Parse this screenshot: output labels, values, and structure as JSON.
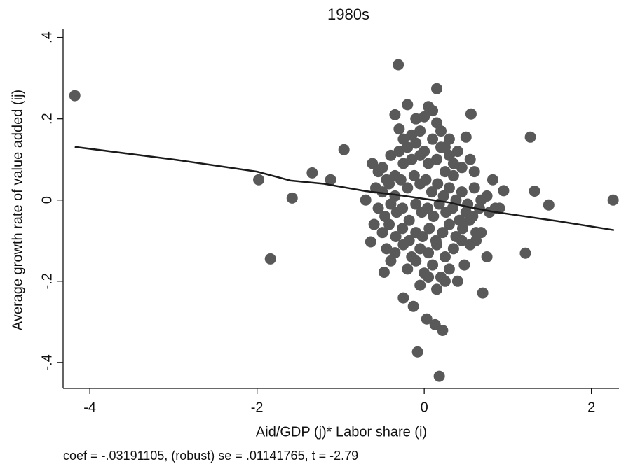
{
  "chart_data": {
    "type": "scatter",
    "title": "1980s",
    "x_label": "Aid/GDP (j)* Labor share (i)",
    "y_label": "Average growth rate of value added (ij)",
    "note": "coef = -.03191105, (robust) se = .01141765, t = -2.79",
    "xlim": [
      -4.32,
      2.33
    ],
    "ylim": [
      -0.464,
      0.42
    ],
    "xticks": [
      -4,
      -2,
      0,
      2
    ],
    "yticks": [
      {
        "value": 0.4,
        "label": ".4"
      },
      {
        "value": 0.2,
        "label": ".2"
      },
      0,
      {
        "value": -0.2,
        "label": "-.2"
      },
      {
        "value": -0.4,
        "label": "-.4"
      }
    ],
    "series": [
      {
        "type": "scatter",
        "color": "#595959",
        "x": [
          -4.18,
          -1.98,
          -1.84,
          -1.58,
          -1.34,
          -1.12,
          -0.96,
          2.26,
          1.27,
          1.49,
          1.32,
          -0.31,
          0.15,
          -0.08,
          0.18,
          0.03,
          0.13,
          0.22,
          0.7,
          -0.25,
          -0.13,
          0.56,
          -0.48,
          -0.64,
          -0.7,
          1.21,
          0.95,
          0.82,
          0.75,
          0.62,
          -0.35,
          -0.3,
          -0.25,
          -0.2,
          -0.15,
          -0.1,
          -0.05,
          0.0,
          0.05,
          0.1,
          0.15,
          0.2,
          0.25,
          0.3,
          0.35,
          0.4,
          0.45,
          0.5,
          0.55,
          0.6,
          -0.62,
          -0.55,
          -0.5,
          -0.45,
          -0.4,
          -0.35,
          -0.3,
          -0.25,
          -0.2,
          -0.15,
          -0.1,
          -0.05,
          0.0,
          0.05,
          0.1,
          0.15,
          0.2,
          0.25,
          0.3,
          0.35,
          -0.58,
          -0.5,
          -0.42,
          -0.35,
          -0.28,
          -0.2,
          -0.12,
          -0.05,
          0.02,
          0.09,
          0.16,
          0.23,
          0.3,
          0.38,
          0.45,
          0.52,
          0.6,
          0.68,
          0.75,
          0.85,
          -0.55,
          -0.47,
          -0.4,
          -0.33,
          -0.26,
          -0.18,
          -0.1,
          -0.03,
          0.04,
          0.11,
          0.18,
          0.26,
          0.34,
          0.42,
          0.5,
          0.58,
          0.66,
          0.78,
          0.9,
          -0.6,
          -0.5,
          -0.42,
          -0.34,
          -0.26,
          -0.18,
          -0.1,
          -0.02,
          0.06,
          0.14,
          0.22,
          0.3,
          0.38,
          0.46,
          0.54,
          0.62,
          -0.45,
          -0.35,
          -0.25,
          -0.15,
          -0.05,
          0.05,
          0.15,
          0.25,
          0.35,
          0.45,
          0.55,
          -0.2,
          -0.1,
          0.0,
          0.1,
          0.2,
          0.3,
          0.4,
          -0.05,
          0.05,
          0.15,
          0.25,
          -0.4,
          0.68,
          0.48
        ],
        "values": [
          0.257,
          0.05,
          -0.145,
          0.005,
          0.067,
          0.05,
          0.124,
          0.0,
          0.155,
          -0.012,
          0.022,
          0.333,
          0.274,
          -0.374,
          -0.434,
          -0.293,
          -0.307,
          -0.321,
          -0.229,
          -0.241,
          -0.262,
          0.212,
          -0.178,
          -0.103,
          0.0,
          -0.131,
          0.023,
          0.05,
          -0.14,
          -0.1,
          0.21,
          0.175,
          0.15,
          0.235,
          0.16,
          0.2,
          0.17,
          0.205,
          0.23,
          0.22,
          0.19,
          0.17,
          0.13,
          0.15,
          0.09,
          0.12,
          0.08,
          0.155,
          0.1,
          0.07,
          0.09,
          0.07,
          0.08,
          0.05,
          0.11,
          0.06,
          0.12,
          0.09,
          0.13,
          0.1,
          0.14,
          0.11,
          0.12,
          0.09,
          0.15,
          0.1,
          0.13,
          0.07,
          0.11,
          0.06,
          0.03,
          0.02,
          0.04,
          0.01,
          0.05,
          0.03,
          0.06,
          0.04,
          0.05,
          0.02,
          0.04,
          0.01,
          0.03,
          0.0,
          0.02,
          -0.01,
          0.03,
          0.0,
          0.01,
          -0.02,
          -0.02,
          -0.04,
          -0.01,
          -0.03,
          -0.02,
          -0.05,
          -0.01,
          -0.03,
          -0.02,
          -0.04,
          -0.01,
          -0.03,
          -0.02,
          -0.05,
          -0.03,
          -0.04,
          -0.02,
          -0.03,
          -0.02,
          -0.06,
          -0.08,
          -0.06,
          -0.09,
          -0.07,
          -0.1,
          -0.08,
          -0.09,
          -0.07,
          -0.1,
          -0.08,
          -0.06,
          -0.09,
          -0.07,
          -0.05,
          -0.08,
          -0.12,
          -0.13,
          -0.11,
          -0.14,
          -0.12,
          -0.13,
          -0.11,
          -0.14,
          -0.12,
          -0.1,
          -0.11,
          -0.17,
          -0.15,
          -0.18,
          -0.16,
          -0.19,
          -0.17,
          -0.2,
          -0.21,
          -0.19,
          -0.22,
          -0.2,
          -0.15,
          -0.08,
          -0.16
        ]
      },
      {
        "type": "line",
        "color": "#1a1a1a",
        "x": [
          -4.18,
          -3,
          -2,
          -1.6,
          -1.2,
          -0.7,
          -0.3,
          0,
          0.3,
          0.5,
          0.8,
          1.2,
          1.6,
          2.27
        ],
        "values": [
          0.131,
          0.1,
          0.07,
          0.048,
          0.04,
          0.022,
          0.012,
          0.003,
          -0.006,
          -0.016,
          -0.028,
          -0.04,
          -0.052,
          -0.074
        ]
      }
    ]
  }
}
